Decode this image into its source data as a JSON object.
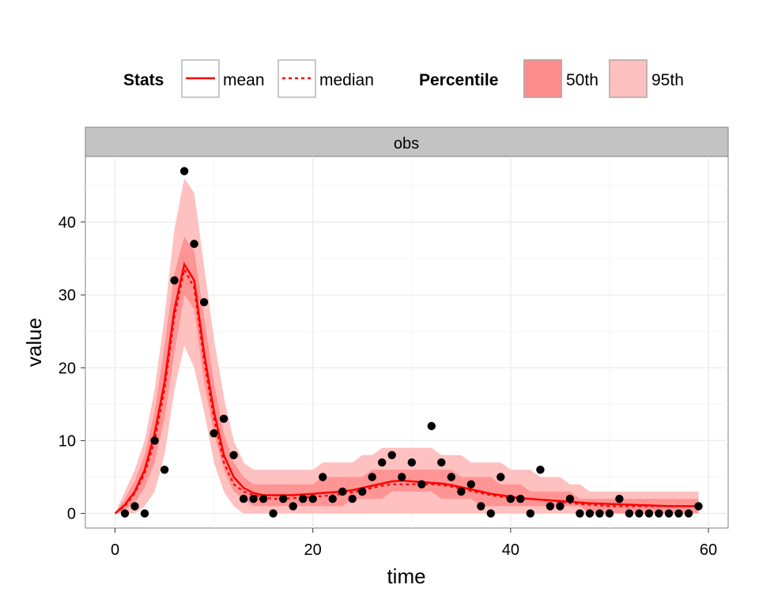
{
  "legend": {
    "stats_title": "Stats",
    "percentile_title": "Percentile",
    "items": {
      "mean": "mean",
      "median": "median",
      "p50": "50th",
      "p95": "95th"
    }
  },
  "colors": {
    "line": "#ff0000",
    "band50": "#ff8c8c",
    "band95": "#ffc0c0",
    "points": "#000000",
    "strip": "#c3c3c3",
    "grid": "#ebebeb"
  },
  "chart_data": {
    "type": "line",
    "facet": "obs",
    "xlabel": "time",
    "ylabel": "value",
    "xlim": [
      -3,
      62
    ],
    "ylim": [
      -2,
      49
    ],
    "xticks": [
      0,
      20,
      40,
      60
    ],
    "yticks": [
      0,
      10,
      20,
      30,
      40
    ],
    "grid": true,
    "legend_position": "top",
    "x": [
      0,
      1,
      2,
      3,
      4,
      5,
      6,
      7,
      8,
      9,
      10,
      11,
      12,
      13,
      14,
      15,
      16,
      17,
      18,
      19,
      20,
      21,
      22,
      23,
      24,
      25,
      26,
      27,
      28,
      29,
      30,
      31,
      32,
      33,
      34,
      35,
      36,
      37,
      38,
      39,
      40,
      41,
      42,
      43,
      44,
      45,
      46,
      47,
      48,
      49,
      50,
      51,
      52,
      53,
      54,
      55,
      56,
      57,
      58,
      59
    ],
    "series": [
      {
        "name": "mean",
        "values": [
          0,
          1.2,
          3,
          6,
          11,
          18,
          28,
          34.2,
          32,
          22,
          14,
          8,
          5,
          3.5,
          2.8,
          2.5,
          2.5,
          2.5,
          2.5,
          2.6,
          2.7,
          2.8,
          2.9,
          3,
          3.2,
          3.5,
          3.8,
          4.1,
          4.4,
          4.5,
          4.4,
          4.3,
          4.2,
          4.1,
          3.9,
          3.6,
          3.3,
          3,
          2.7,
          2.5,
          2.3,
          2.1,
          2,
          1.9,
          1.8,
          1.7,
          1.6,
          1.5,
          1.4,
          1.35,
          1.3,
          1.25,
          1.2,
          1.15,
          1.1,
          1.05,
          1,
          1,
          1,
          1
        ]
      },
      {
        "name": "median",
        "values": [
          0,
          1,
          2.8,
          5.5,
          10,
          17,
          27,
          33.5,
          31,
          21,
          13,
          7,
          4,
          3,
          2.5,
          2.2,
          2,
          2,
          2.1,
          2.2,
          2.3,
          2.4,
          2.5,
          2.7,
          2.9,
          3.2,
          3.5,
          3.8,
          4,
          4,
          4,
          4,
          4,
          3.9,
          3.7,
          3.4,
          3.1,
          2.8,
          2.5,
          2.3,
          2.1,
          2,
          2,
          1.9,
          1.8,
          1.6,
          1.4,
          1.3,
          1.2,
          1.1,
          1,
          1,
          1,
          1,
          1,
          1,
          1,
          1,
          1,
          1
        ]
      }
    ],
    "bands": [
      {
        "name": "95th",
        "lower": [
          0,
          0,
          0,
          1,
          3,
          8,
          17,
          23,
          20,
          14,
          7,
          3,
          1,
          0,
          0,
          0,
          0,
          0,
          0,
          0,
          0,
          0,
          0,
          0,
          0,
          0,
          0,
          0,
          0,
          0,
          0,
          0,
          0,
          0,
          0,
          0,
          0,
          0,
          0,
          0,
          0,
          0,
          0,
          0,
          0,
          0,
          0,
          0,
          0,
          0,
          0,
          0,
          0,
          0,
          0,
          0,
          0,
          0,
          0,
          0
        ],
        "upper": [
          0,
          3,
          6,
          10,
          17,
          27,
          39,
          46,
          44,
          34,
          24,
          16,
          10,
          7,
          6,
          6,
          6,
          6,
          6,
          6,
          6,
          7,
          7,
          7,
          7,
          8,
          8,
          9,
          9,
          9,
          9,
          9,
          9,
          8,
          8,
          8,
          7,
          7,
          7,
          7,
          6,
          6,
          6,
          5,
          5,
          5,
          4,
          4,
          3,
          3,
          3,
          3,
          3,
          3,
          3,
          3,
          3,
          3,
          3,
          3
        ]
      },
      {
        "name": "50th",
        "lower": [
          0,
          0.5,
          1.5,
          3.5,
          7,
          13,
          22,
          30,
          28,
          18,
          11,
          6,
          3,
          2,
          1,
          1,
          1,
          1,
          1,
          1,
          1,
          1,
          1,
          1,
          2,
          2,
          2,
          2,
          3,
          3,
          3,
          3,
          3,
          2,
          2,
          2,
          2,
          1,
          1,
          1,
          1,
          1,
          1,
          1,
          1,
          1,
          1,
          1,
          0,
          0,
          0,
          0,
          0,
          0,
          0,
          0,
          0,
          0,
          0,
          0
        ],
        "upper": [
          0,
          2,
          4.5,
          8,
          14,
          23,
          33,
          38,
          36,
          27,
          18,
          11,
          7,
          5,
          4,
          4,
          4,
          4,
          4,
          4,
          4,
          5,
          5,
          5,
          5,
          5,
          6,
          6,
          6,
          6,
          6,
          6,
          6,
          6,
          6,
          5,
          5,
          5,
          5,
          4,
          4,
          4,
          3,
          3,
          3,
          3,
          3,
          2,
          2,
          2,
          2,
          2,
          2,
          2,
          2,
          2,
          2,
          2,
          2,
          2
        ]
      }
    ],
    "observed": {
      "name": "obs",
      "x": [
        1,
        2,
        3,
        4,
        5,
        6,
        7,
        8,
        9,
        10,
        11,
        12,
        13,
        14,
        15,
        16,
        17,
        18,
        19,
        20,
        21,
        22,
        23,
        24,
        25,
        26,
        27,
        28,
        29,
        30,
        31,
        32,
        33,
        34,
        35,
        36,
        37,
        38,
        39,
        40,
        41,
        42,
        43,
        44,
        45,
        46,
        47,
        48,
        49,
        50,
        51,
        52,
        53,
        54,
        55,
        56,
        57,
        58,
        59
      ],
      "y": [
        0,
        1,
        0,
        10,
        6,
        32,
        47,
        37,
        29,
        11,
        13,
        8,
        2,
        2,
        2,
        0,
        2,
        1,
        2,
        2,
        5,
        2,
        3,
        2,
        3,
        5,
        7,
        8,
        5,
        7,
        4,
        12,
        7,
        5,
        3,
        4,
        1,
        0,
        5,
        2,
        2,
        0,
        6,
        1,
        1,
        2,
        0,
        0,
        0,
        0,
        2,
        0,
        0,
        0,
        0,
        0,
        0,
        0,
        1
      ]
    }
  }
}
